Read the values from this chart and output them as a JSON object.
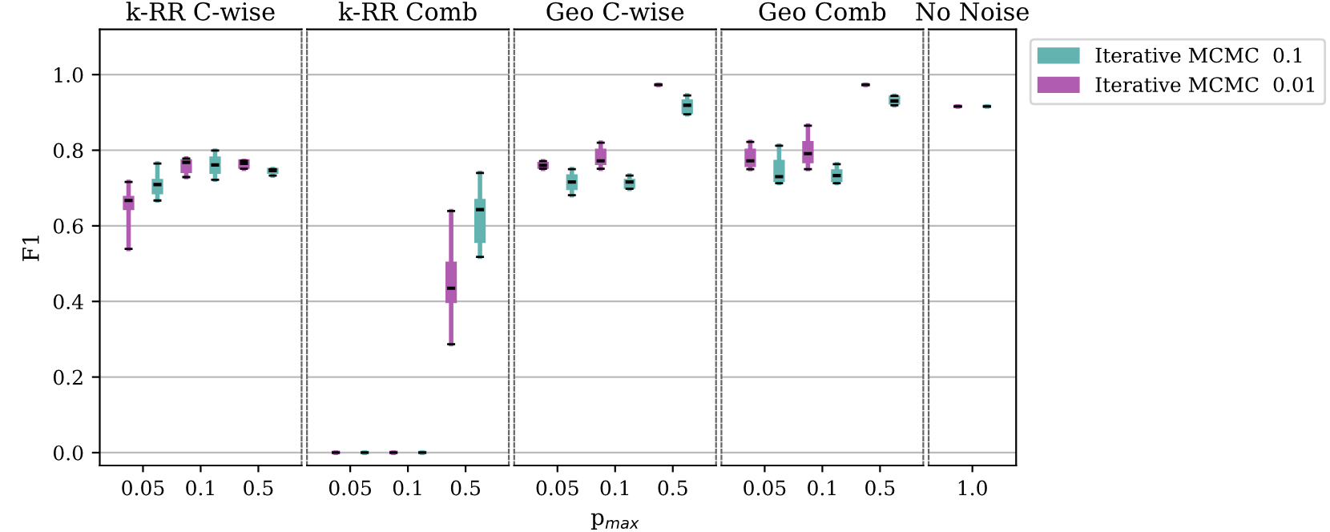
{
  "chart_data": [
    {
      "type": "box",
      "title": "k-RR C-wise",
      "ylabel": "F1",
      "categories": [
        "0.05",
        "0.1",
        "0.5"
      ],
      "ylim": [
        -0.034,
        1.12
      ],
      "yticks": [
        {
          "value": 0,
          "label": "0.0"
        },
        0.2,
        0.4,
        0.6,
        0.8,
        {
          "value": 1,
          "label": "1.0"
        }
      ],
      "grid": "y",
      "series": [
        {
          "color": "#b05cb0",
          "boxes": [
            {
              "low": 0.539,
              "q1": 0.646,
              "median": 0.667,
              "q3": 0.675,
              "high": 0.716
            },
            {
              "low": 0.729,
              "q1": 0.744,
              "median": 0.768,
              "q3": 0.772,
              "high": 0.778
            },
            {
              "low": 0.751,
              "q1": 0.755,
              "median": 0.765,
              "q3": 0.772,
              "high": 0.772
            }
          ]
        },
        {
          "color": "#63b3b1",
          "boxes": [
            {
              "low": 0.667,
              "q1": 0.688,
              "median": 0.709,
              "q3": 0.72,
              "high": 0.765
            },
            {
              "low": 0.722,
              "q1": 0.742,
              "median": 0.761,
              "q3": 0.779,
              "high": 0.799
            },
            {
              "low": 0.733,
              "q1": 0.742,
              "median": 0.746,
              "q3": 0.749,
              "high": 0.75
            }
          ]
        }
      ]
    },
    {
      "type": "box",
      "title": "k-RR Comb",
      "categories": [
        "0.05",
        "0.1",
        "0.5"
      ],
      "ylim": [
        -0.034,
        1.12
      ],
      "yticks": [
        0,
        0.2,
        0.4,
        0.6,
        0.8,
        1
      ],
      "tick_labels": "x",
      "grid": "y",
      "series": [
        {
          "color": "#b05cb0",
          "boxes": [
            {
              "low": 0,
              "q1": 0,
              "median": 0,
              "q3": 0,
              "high": 0
            },
            {
              "low": 0,
              "q1": 0,
              "median": 0,
              "q3": 0,
              "high": 0
            },
            {
              "low": 0.287,
              "q1": 0.4,
              "median": 0.435,
              "q3": 0.501,
              "high": 0.639
            }
          ]
        },
        {
          "color": "#63b3b1",
          "boxes": [
            {
              "low": 0,
              "q1": 0,
              "median": 0,
              "q3": 0,
              "high": 0
            },
            {
              "low": 0,
              "q1": 0,
              "median": 0,
              "q3": 0,
              "high": 0
            },
            {
              "low": 0.518,
              "q1": 0.559,
              "median": 0.643,
              "q3": 0.667,
              "high": 0.74
            }
          ]
        }
      ]
    },
    {
      "type": "box",
      "title": "Geo C-wise",
      "xlabel": "p$_{max}$",
      "categories": [
        "0.05",
        "0.1",
        "0.5"
      ],
      "ylim": [
        -0.034,
        1.12
      ],
      "yticks": [
        0,
        0.2,
        0.4,
        0.6,
        0.8,
        1
      ],
      "tick_labels": "x",
      "grid": "y",
      "series": [
        {
          "color": "#b05cb0",
          "boxes": [
            {
              "low": 0.751,
              "q1": 0.755,
              "median": 0.76,
              "q3": 0.765,
              "high": 0.771
            },
            {
              "low": 0.751,
              "q1": 0.765,
              "median": 0.772,
              "q3": 0.8,
              "high": 0.82
            },
            {
              "low": 0.973,
              "q1": 0.973,
              "median": 0.973,
              "q3": 0.973,
              "high": 0.973
            }
          ]
        },
        {
          "color": "#63b3b1",
          "boxes": [
            {
              "low": 0.681,
              "q1": 0.699,
              "median": 0.716,
              "q3": 0.732,
              "high": 0.75
            },
            {
              "low": 0.698,
              "q1": 0.702,
              "median": 0.716,
              "q3": 0.72,
              "high": 0.733
            },
            {
              "low": 0.895,
              "q1": 0.9,
              "median": 0.919,
              "q3": 0.93,
              "high": 0.945
            }
          ]
        }
      ]
    },
    {
      "type": "box",
      "title": "Geo Comb",
      "categories": [
        "0.05",
        "0.1",
        "0.5"
      ],
      "ylim": [
        -0.034,
        1.12
      ],
      "yticks": [
        0,
        0.2,
        0.4,
        0.6,
        0.8,
        1
      ],
      "tick_labels": "x",
      "grid": "y",
      "series": [
        {
          "color": "#b05cb0",
          "boxes": [
            {
              "low": 0.75,
              "q1": 0.76,
              "median": 0.772,
              "q3": 0.8,
              "high": 0.822
            },
            {
              "low": 0.75,
              "q1": 0.77,
              "median": 0.791,
              "q3": 0.82,
              "high": 0.865
            },
            {
              "low": 0.973,
              "q1": 0.973,
              "median": 0.973,
              "q3": 0.973,
              "high": 0.973
            }
          ]
        },
        {
          "color": "#63b3b1",
          "boxes": [
            {
              "low": 0.713,
              "q1": 0.72,
              "median": 0.73,
              "q3": 0.77,
              "high": 0.812
            },
            {
              "low": 0.713,
              "q1": 0.72,
              "median": 0.733,
              "q3": 0.745,
              "high": 0.763
            },
            {
              "low": 0.919,
              "q1": 0.925,
              "median": 0.93,
              "q3": 0.94,
              "high": 0.944
            }
          ]
        }
      ]
    },
    {
      "type": "box",
      "title": "No Noise",
      "categories": [
        "1.0"
      ],
      "ylim": [
        -0.034,
        1.12
      ],
      "yticks": [
        0,
        0.2,
        0.4,
        0.6,
        0.8,
        1
      ],
      "tick_labels": "x",
      "grid": "y",
      "legend": "top right",
      "series": [
        {
          "name": "Iterative MCMC  0.01",
          "color": "#b05cb0",
          "boxes": [
            {
              "low": 0.916,
              "q1": 0.916,
              "median": 0.916,
              "q3": 0.916,
              "high": 0.916
            }
          ]
        },
        {
          "name": "Iterative MCMC  0.1",
          "color": "#63b3b1",
          "boxes": [
            {
              "low": 0.916,
              "q1": 0.916,
              "median": 0.916,
              "q3": 0.916,
              "high": 0.916
            }
          ]
        }
      ]
    }
  ]
}
